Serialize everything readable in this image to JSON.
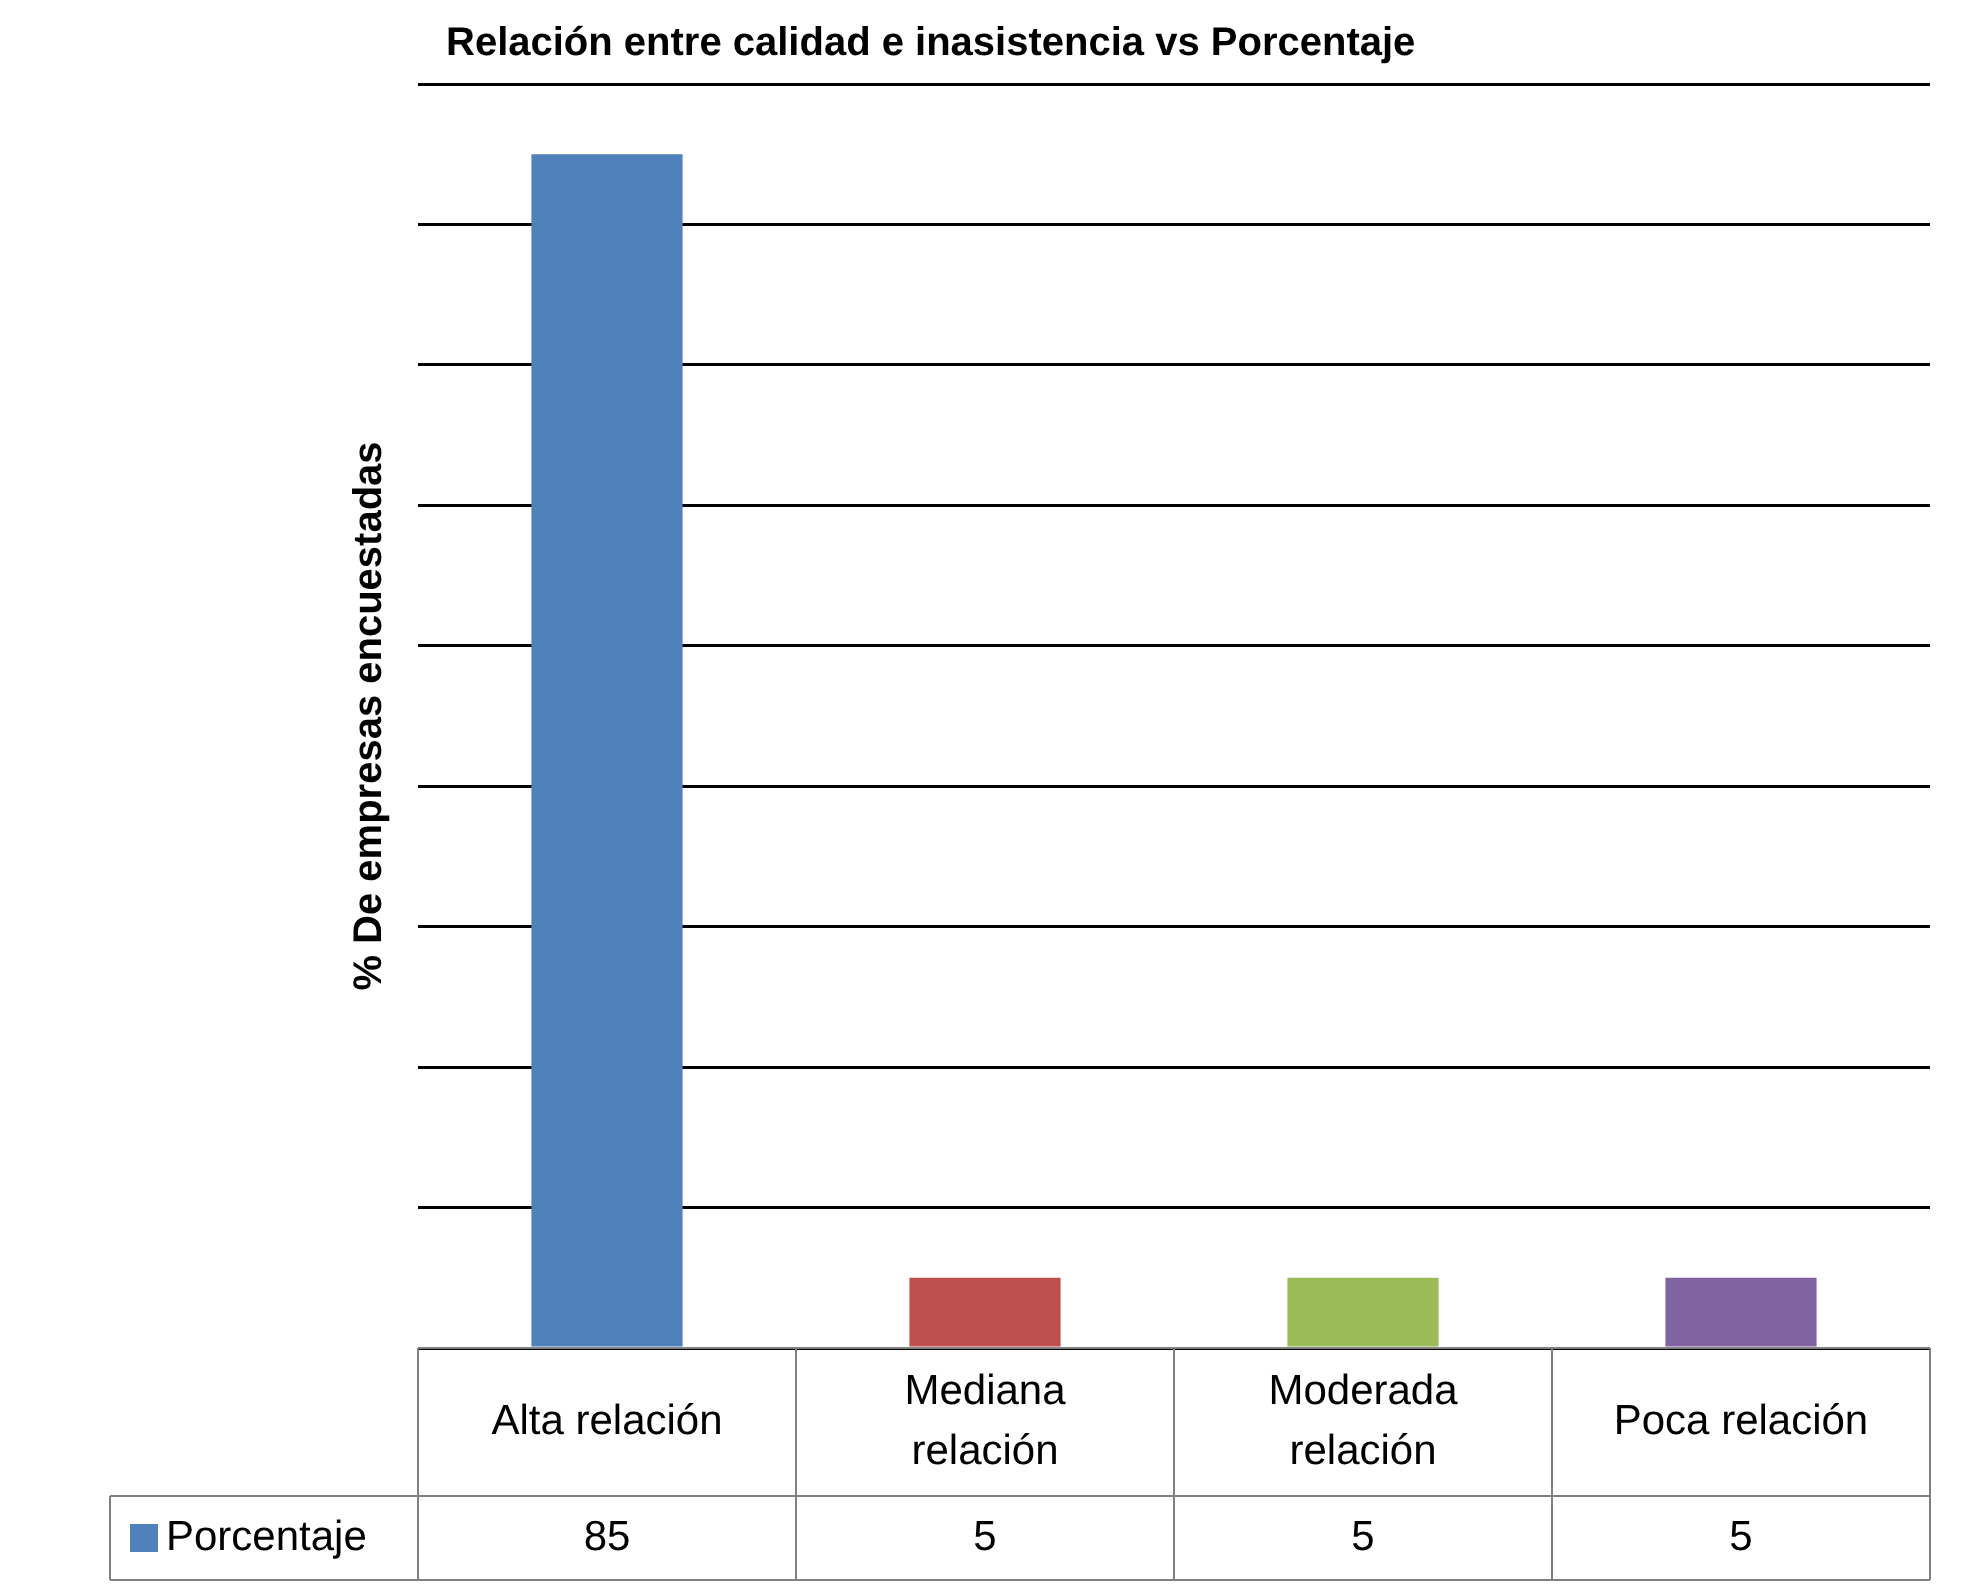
{
  "chart_data": {
    "type": "bar",
    "title": "Relación entre calidad e inasistencia vs Porcentaje",
    "ylabel": "% De empresas encuestadas",
    "categories": [
      "Alta relación",
      "Mediana relación",
      "Moderada relación",
      "Poca relación"
    ],
    "series": [
      {
        "name": "Porcentaje",
        "colors": [
          "#4f81bd",
          "#c0504d",
          "#9bbb59",
          "#8064a2"
        ],
        "values": [
          85,
          5,
          5,
          5
        ]
      }
    ],
    "ylim": [
      0,
      90
    ],
    "yticks": [
      {
        "value": 0,
        "label": null
      },
      {
        "value": 10,
        "label": null
      },
      {
        "value": 20,
        "label": null
      },
      {
        "value": 30,
        "label": null
      },
      {
        "value": 40,
        "label": null
      },
      {
        "value": 50,
        "label": null
      },
      {
        "value": 60,
        "label": null
      },
      {
        "value": 70,
        "label": null
      },
      {
        "value": 80,
        "label": null
      },
      {
        "value": 90,
        "label": null
      }
    ],
    "grid": "y",
    "tick_labels": "x",
    "data_labels": true,
    "legend": "bottom"
  }
}
